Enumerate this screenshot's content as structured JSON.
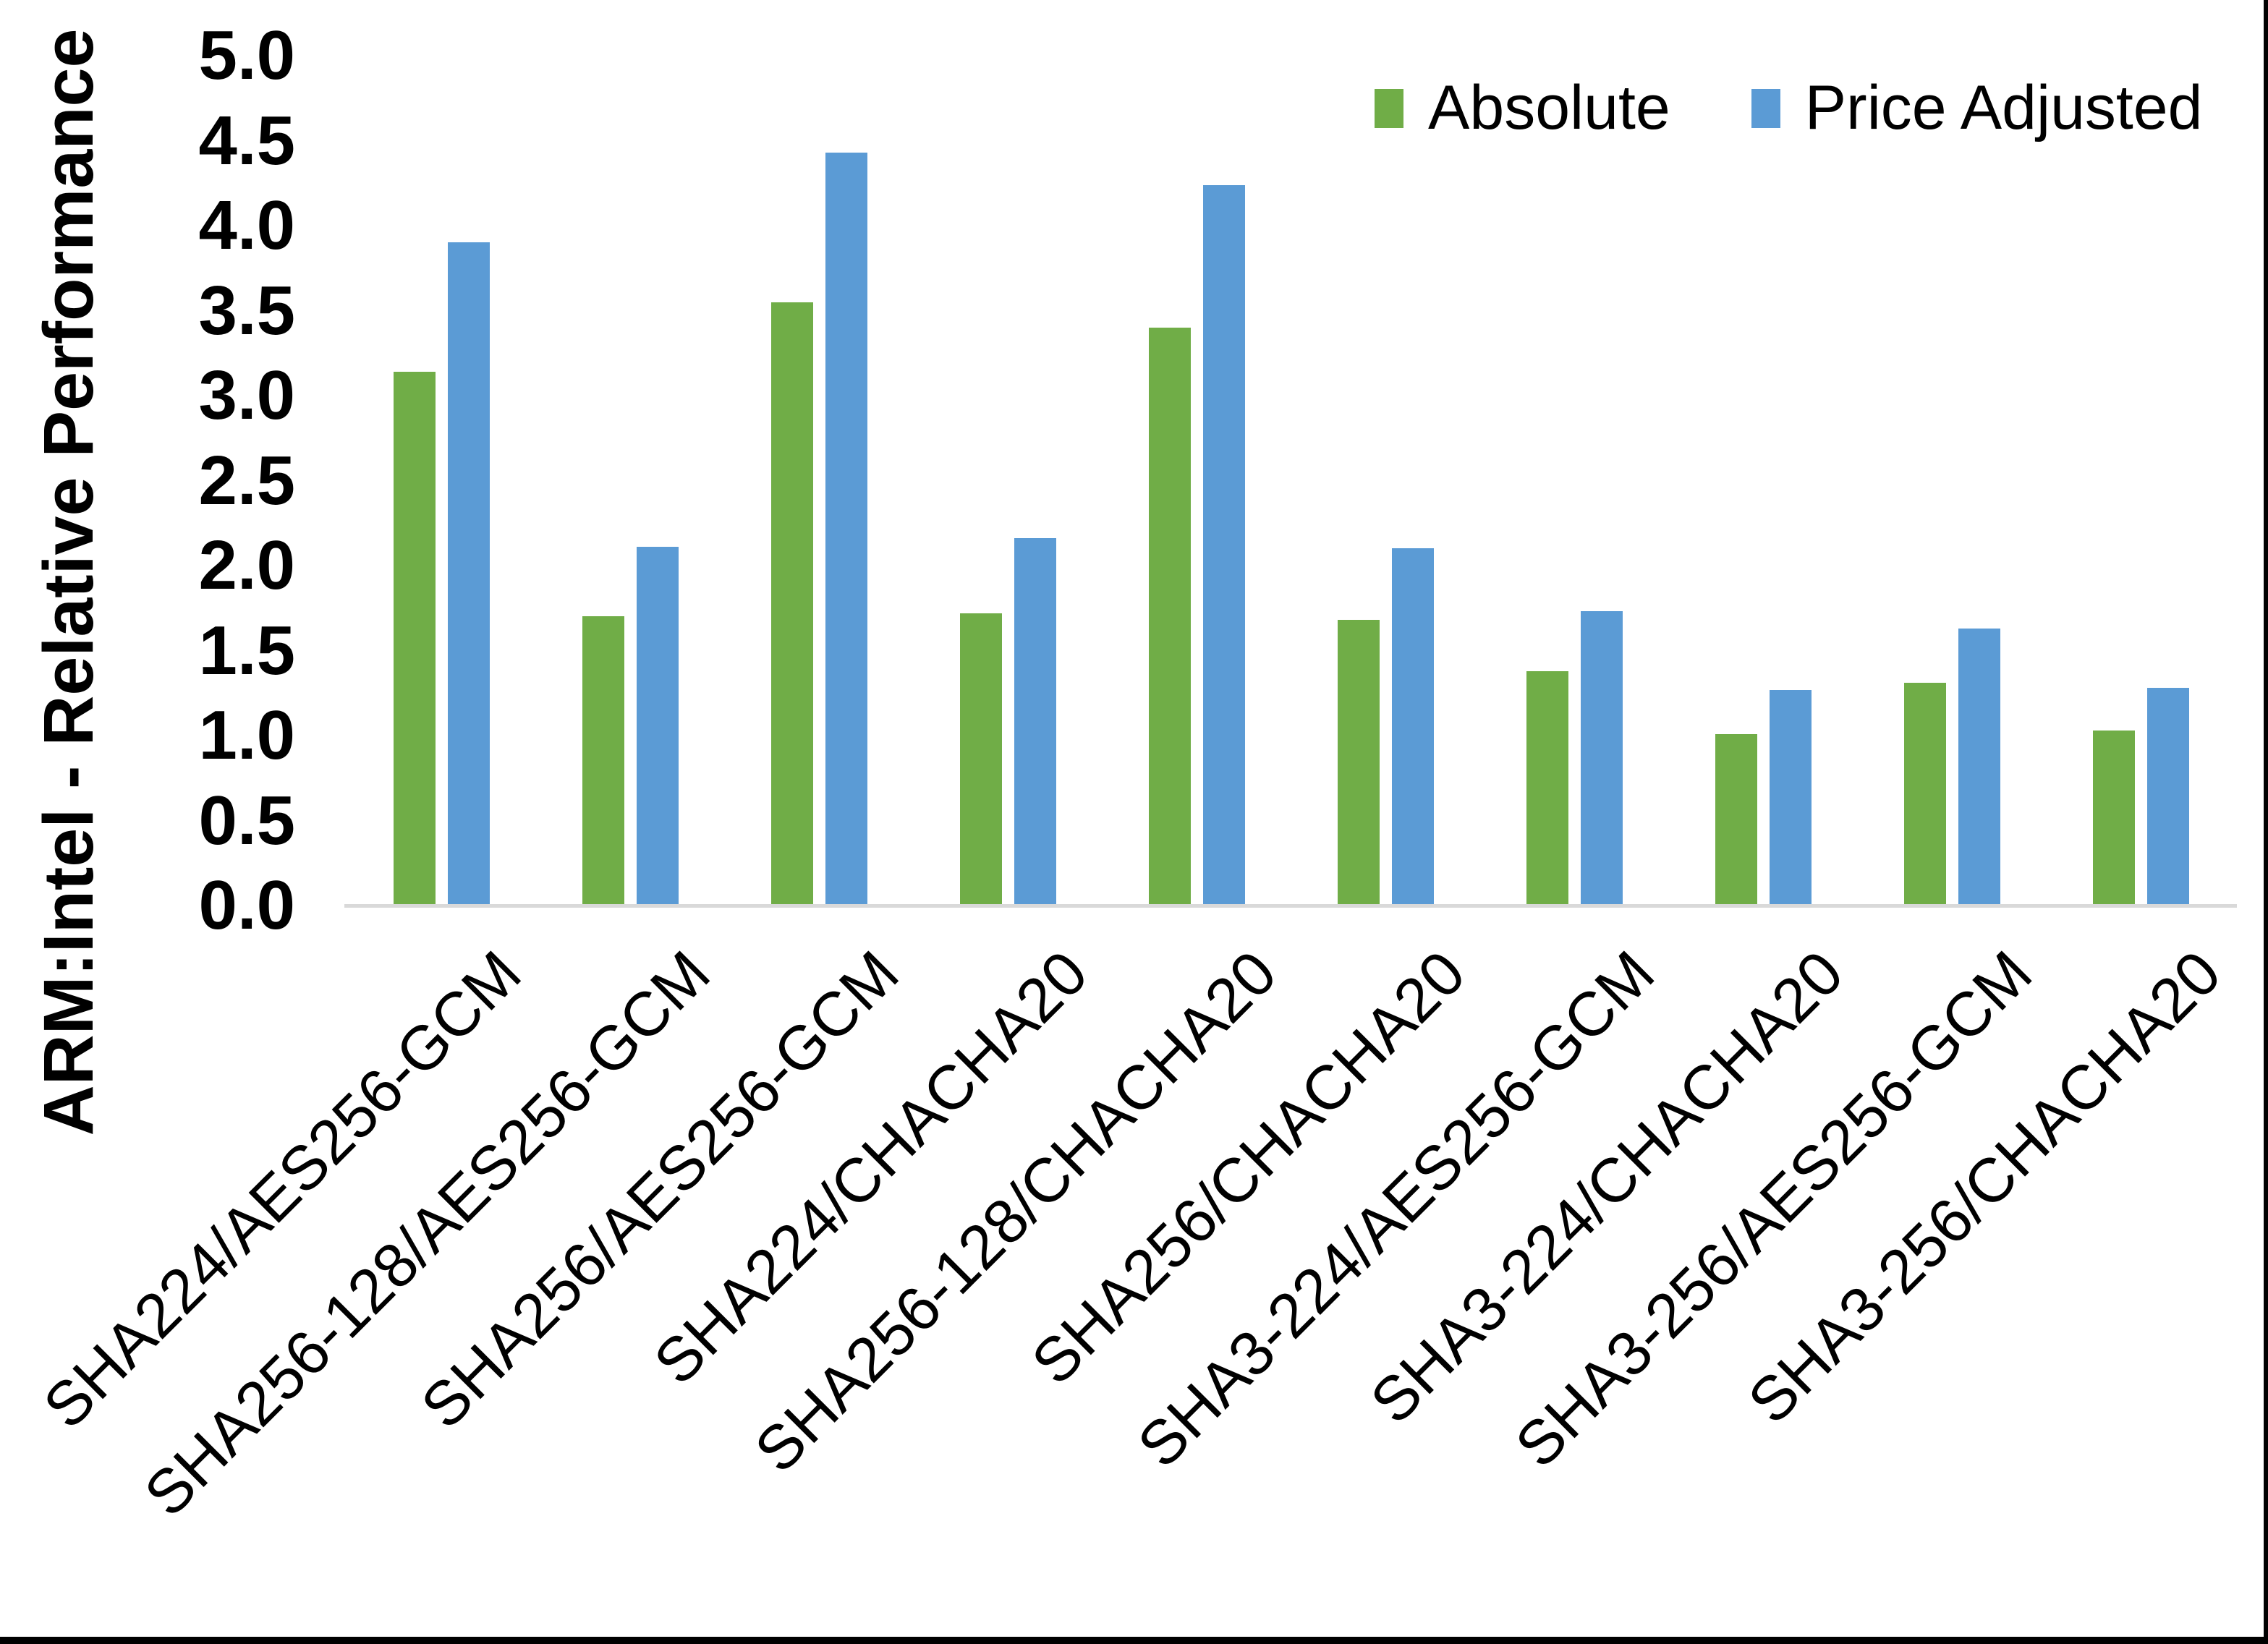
{
  "chart_data": {
    "type": "bar",
    "title": "",
    "ylabel": "ARM:Intel - Relative Performance",
    "xlabel": "",
    "ylim": [
      0.0,
      5.0
    ],
    "ytick_step": 0.5,
    "ytick_labels": [
      "5.0",
      "4.5",
      "4.0",
      "3.5",
      "3.0",
      "2.5",
      "2.0",
      "1.5",
      "1.0",
      "0.5",
      "0.0"
    ],
    "grid": false,
    "legend_position": "top-right",
    "axis_line_color": "#D9D9D9",
    "categories": [
      "SHA224/AES256-GCM",
      "SHA256-128/AES256-GCM",
      "SHA256/AES256-GCM",
      "SHA224/CHACHA20",
      "SHA256-128/CHACHA20",
      "SHA256/CHACHA20",
      "SHA3-224/AES256-GCM",
      "SHA3-224/CHACHA20",
      "SHA3-256/AES256-GCM",
      "SHA3-256/CHACHA20"
    ],
    "series": [
      {
        "name": "Absolute",
        "color": "#70AD47",
        "values": [
          3.14,
          1.7,
          3.55,
          1.72,
          3.4,
          1.68,
          1.38,
          1.01,
          1.31,
          1.03
        ]
      },
      {
        "name": "Price Adjusted",
        "color": "#5B9BD5",
        "values": [
          3.9,
          2.11,
          4.43,
          2.16,
          4.24,
          2.1,
          1.73,
          1.27,
          1.63,
          1.28
        ]
      }
    ]
  }
}
